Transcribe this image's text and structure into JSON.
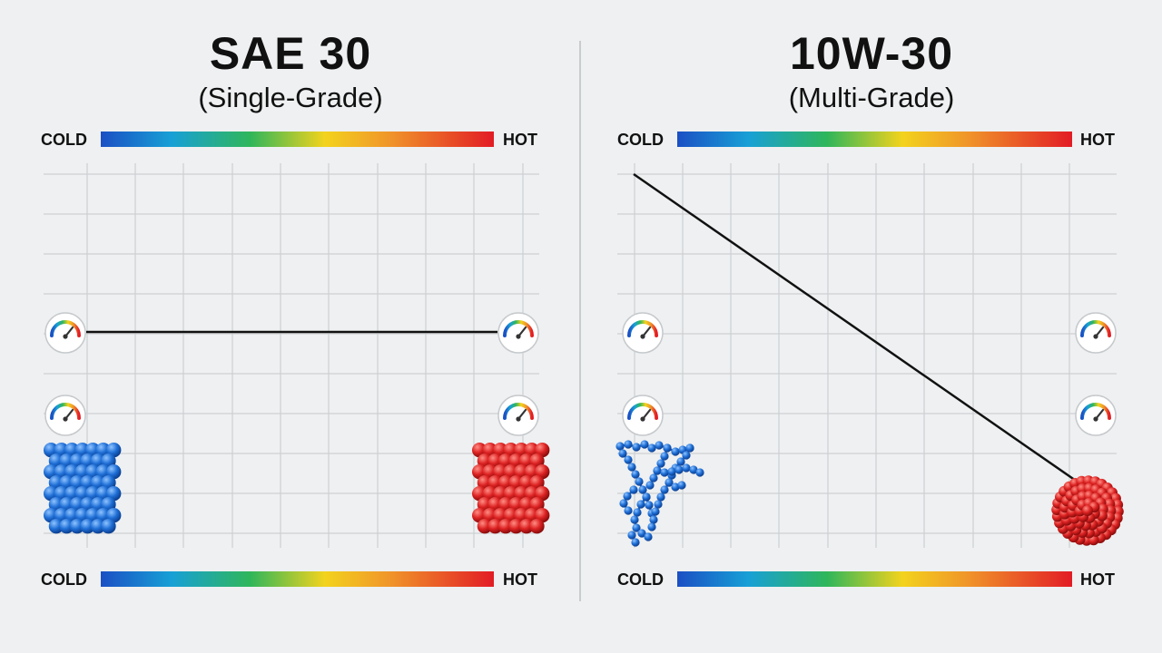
{
  "left_panel": {
    "title": "SAE 30",
    "subtitle": "(Single-Grade)",
    "top_scale": {
      "cold_label": "COLD",
      "hot_label": "HOT"
    },
    "bottom_scale": {
      "cold_label": "COLD",
      "hot_label": "HOT"
    }
  },
  "right_panel": {
    "title": "10W-30",
    "subtitle": "(Multi-Grade)",
    "top_scale": {
      "cold_label": "COLD",
      "hot_label": "HOT"
    },
    "bottom_scale": {
      "cold_label": "COLD",
      "hot_label": "HOT"
    }
  },
  "colors": {
    "cold_molecule": "#1f6fd6",
    "hot_molecule": "#dc2222",
    "gradient": [
      "#1a4fc4",
      "#18a0d6",
      "#2fb65a",
      "#f3d31d",
      "#f0932a",
      "#e21c25"
    ]
  },
  "icons": [
    "gauge-icon",
    "molecule-cluster-icon",
    "polymer-chain-icon"
  ]
}
